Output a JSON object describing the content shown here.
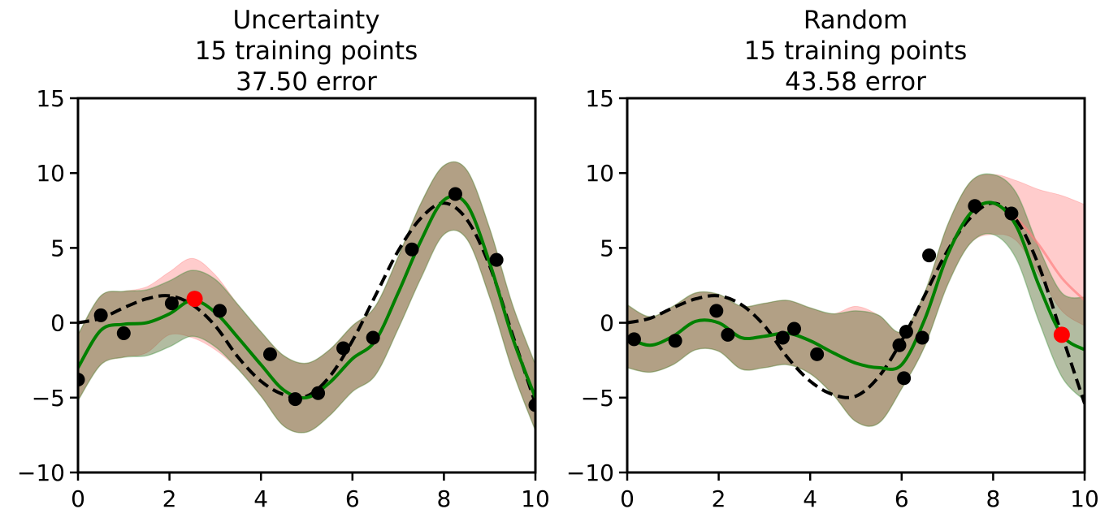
{
  "chart_data": [
    {
      "type": "line",
      "title_lines": [
        "Uncertainty",
        "15 training points",
        "37.50 error"
      ],
      "xlim": [
        0,
        10
      ],
      "ylim": [
        -10,
        15
      ],
      "xticks": [
        0,
        2,
        4,
        6,
        8,
        10
      ],
      "yticks": [
        -10,
        -5,
        0,
        5,
        10,
        15
      ],
      "xtick_labels": [
        "0",
        "2",
        "4",
        "6",
        "8",
        "10"
      ],
      "ytick_labels": [
        "−10",
        "−5",
        "0",
        "5",
        "10",
        "15"
      ],
      "grid": false,
      "true_function": {
        "style": "dashed",
        "color": "#000000",
        "x": [
          0,
          0.5,
          1,
          1.5,
          2,
          2.5,
          3,
          3.5,
          4,
          4.5,
          5,
          5.5,
          6,
          6.5,
          7,
          7.5,
          8,
          8.5,
          9,
          9.5,
          10
        ],
        "y": [
          0,
          0.3,
          1.0,
          1.6,
          1.8,
          1.2,
          -0.2,
          -2.3,
          -3.9,
          -4.8,
          -4.9,
          -3.6,
          -1.2,
          1.8,
          4.8,
          7.0,
          8.0,
          6.9,
          3.8,
          -0.8,
          -5.4
        ]
      },
      "mean_prediction": {
        "color": "#008000",
        "x": [
          0,
          0.5,
          1,
          1.5,
          2,
          2.5,
          3,
          3.5,
          4,
          4.5,
          5,
          5.5,
          6,
          6.5,
          7,
          7.5,
          8,
          8.5,
          9,
          9.5,
          10
        ],
        "y": [
          -3.0,
          -0.5,
          -0.1,
          0.0,
          0.6,
          1.5,
          0.7,
          -1.0,
          -2.8,
          -4.5,
          -5.0,
          -4.0,
          -2.4,
          -1.2,
          2.0,
          5.5,
          8.2,
          7.9,
          4.0,
          -1.0,
          -5.0
        ]
      },
      "uncertainty_band_new": {
        "color": "#556b2f",
        "x": [
          0,
          0.5,
          1,
          1.5,
          2,
          2.5,
          3,
          3.5,
          4,
          4.5,
          5,
          5.5,
          6,
          6.5,
          7,
          7.5,
          8,
          8.5,
          9,
          9.5,
          10
        ],
        "lower": [
          -5.2,
          -2.8,
          -2.3,
          -2.2,
          -1.6,
          -0.9,
          -1.6,
          -3.1,
          -4.9,
          -6.9,
          -7.3,
          -6.2,
          -4.6,
          -3.5,
          -0.4,
          3.0,
          5.9,
          5.6,
          1.7,
          -3.2,
          -7.2
        ],
        "upper": [
          -0.8,
          1.8,
          2.1,
          2.2,
          2.8,
          3.5,
          2.9,
          1.2,
          -0.6,
          -2.2,
          -2.7,
          -1.8,
          -0.2,
          1.1,
          4.4,
          8.0,
          10.5,
          10.2,
          6.3,
          1.2,
          -2.8
        ]
      },
      "uncertainty_band_old": {
        "color": "#ff0000",
        "x": [
          0,
          0.5,
          1,
          1.5,
          2,
          2.5,
          3,
          3.5,
          4,
          4.5,
          5,
          5.5,
          6,
          6.5,
          7,
          7.5,
          8,
          8.5,
          9,
          9.5,
          10
        ],
        "lower": [
          -5.2,
          -2.8,
          -2.3,
          -2.0,
          -0.8,
          -1.0,
          -1.8,
          -3.1,
          -4.9,
          -6.9,
          -7.3,
          -6.2,
          -4.6,
          -3.5,
          -0.4,
          3.0,
          5.9,
          5.6,
          1.7,
          -3.2,
          -7.2
        ],
        "upper": [
          -0.8,
          1.8,
          2.1,
          2.4,
          3.4,
          4.3,
          3.2,
          1.2,
          -0.6,
          -2.2,
          -2.7,
          -1.8,
          -0.2,
          1.1,
          4.4,
          8.0,
          10.5,
          10.2,
          6.3,
          1.2,
          -2.8
        ]
      },
      "training_points": {
        "color": "#000000",
        "x": [
          0,
          0.5,
          1.0,
          2.05,
          3.1,
          4.2,
          4.75,
          5.25,
          5.8,
          6.45,
          7.3,
          8.25,
          9.15,
          10.0
        ],
        "y": [
          -3.8,
          0.5,
          -0.7,
          1.3,
          0.8,
          -2.1,
          -5.1,
          -4.7,
          -1.7,
          -1.0,
          4.9,
          8.6,
          4.2,
          -5.5
        ]
      },
      "new_point": {
        "color": "#ff0000",
        "x": 2.55,
        "y": 1.6
      }
    },
    {
      "type": "line",
      "title_lines": [
        "Random",
        "15 training points",
        "43.58 error"
      ],
      "xlim": [
        0,
        10
      ],
      "ylim": [
        -10,
        15
      ],
      "xticks": [
        0,
        2,
        4,
        6,
        8,
        10
      ],
      "yticks": [
        -10,
        -5,
        0,
        5,
        10,
        15
      ],
      "xtick_labels": [
        "0",
        "2",
        "4",
        "6",
        "8",
        "10"
      ],
      "ytick_labels": [
        "−10",
        "−5",
        "0",
        "5",
        "10",
        "15"
      ],
      "grid": false,
      "true_function": {
        "style": "dashed",
        "color": "#000000",
        "x": [
          0,
          0.5,
          1,
          1.5,
          2,
          2.5,
          3,
          3.5,
          4,
          4.5,
          5,
          5.5,
          6,
          6.5,
          7,
          7.5,
          8,
          8.5,
          9,
          9.5,
          10
        ],
        "y": [
          0,
          0.3,
          1.0,
          1.6,
          1.8,
          1.2,
          -0.2,
          -2.3,
          -3.9,
          -4.8,
          -4.9,
          -3.6,
          -1.2,
          1.8,
          4.8,
          7.0,
          8.0,
          6.9,
          3.8,
          -0.8,
          -5.4
        ]
      },
      "mean_prediction": {
        "color": "#008000",
        "x": [
          0,
          0.5,
          1,
          1.5,
          2,
          2.5,
          3,
          3.5,
          4,
          4.5,
          5,
          5.5,
          6,
          6.5,
          7,
          7.5,
          8,
          8.5,
          9,
          9.5,
          10
        ],
        "y": [
          -1.0,
          -1.5,
          -0.9,
          0.1,
          0.0,
          -1.0,
          -0.9,
          -0.7,
          -1.2,
          -2.0,
          -2.7,
          -3.0,
          -2.8,
          0.2,
          4.5,
          7.3,
          8.0,
          6.5,
          2.5,
          -0.8,
          -1.8
        ]
      },
      "uncertainty_band_new": {
        "color": "#556b2f",
        "x": [
          0,
          0.5,
          1,
          1.5,
          2,
          2.5,
          3,
          3.5,
          4,
          4.5,
          5,
          5.5,
          6,
          6.5,
          7,
          7.5,
          8,
          8.5,
          9,
          9.5,
          10
        ],
        "lower": [
          -3.0,
          -3.3,
          -2.8,
          -1.8,
          -1.9,
          -3.1,
          -3.0,
          -2.8,
          -3.4,
          -4.8,
          -6.6,
          -6.7,
          -4.4,
          -1.6,
          2.5,
          5.3,
          5.9,
          4.3,
          0.1,
          -3.6,
          -5.2
        ],
        "upper": [
          1.2,
          0.4,
          1.1,
          2.0,
          1.9,
          1.1,
          1.3,
          1.5,
          1.0,
          0.6,
          0.8,
          0.5,
          -0.6,
          2.0,
          6.5,
          9.4,
          9.9,
          8.7,
          5.0,
          2.0,
          1.7
        ]
      },
      "uncertainty_band_old": {
        "color": "#ff0000",
        "x": [
          0,
          0.5,
          1,
          1.5,
          2,
          2.5,
          3,
          3.5,
          4,
          4.5,
          5,
          5.5,
          6,
          6.5,
          7,
          7.5,
          8,
          8.5,
          9,
          9.5,
          10
        ],
        "lower": [
          -3.0,
          -3.3,
          -2.8,
          -1.8,
          -1.9,
          -3.1,
          -3.0,
          -2.8,
          -3.4,
          -4.8,
          -6.6,
          -6.7,
          -4.4,
          -1.6,
          2.5,
          5.3,
          5.9,
          5.5,
          3.2,
          0.8,
          -0.2
        ],
        "upper": [
          1.2,
          0.4,
          1.1,
          2.0,
          1.9,
          1.1,
          1.3,
          1.5,
          1.0,
          0.6,
          1.1,
          0.5,
          -0.6,
          2.0,
          6.5,
          9.4,
          9.9,
          9.5,
          8.9,
          8.5,
          7.9
        ]
      },
      "old_mean": {
        "color": "#ff8080",
        "x": [
          8.0,
          8.5,
          9.0,
          9.5,
          10.0
        ],
        "y": [
          8.0,
          7.0,
          5.2,
          3.0,
          1.5
        ]
      },
      "training_points": {
        "color": "#000000",
        "x": [
          0.15,
          1.05,
          1.95,
          2.2,
          3.4,
          3.65,
          4.15,
          5.95,
          6.05,
          6.1,
          6.45,
          6.6,
          7.6,
          8.4
        ],
        "y": [
          -1.1,
          -1.2,
          0.8,
          -0.8,
          -1.0,
          -0.4,
          -2.1,
          -1.5,
          -3.7,
          -0.6,
          -1.0,
          4.5,
          7.8,
          7.3
        ]
      },
      "new_point": {
        "color": "#ff0000",
        "x": 9.5,
        "y": -0.8
      }
    }
  ]
}
